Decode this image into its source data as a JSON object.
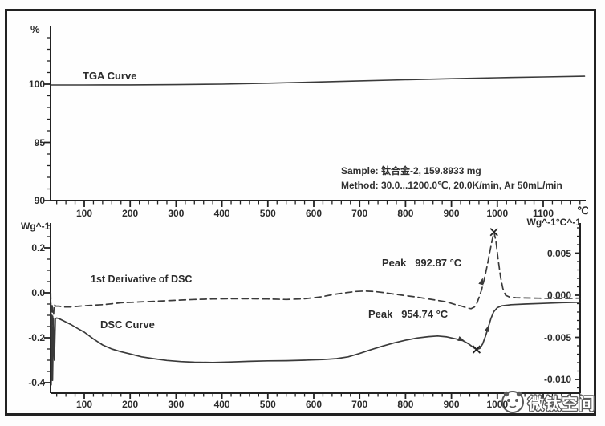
{
  "watermark": {
    "text": "微钛空间",
    "logo": "panda-logo-icon"
  },
  "shared_x_axis": {
    "unit": "℃",
    "tick_labels": [
      100,
      200,
      300,
      400,
      500,
      600,
      700,
      800,
      900,
      1000,
      1100
    ]
  },
  "bottom_x_axis": {
    "tick_labels": [
      100,
      200,
      300,
      400,
      500,
      600,
      700,
      800,
      900,
      1000
    ]
  },
  "chart_data": [
    {
      "type": "line",
      "title": "TGA Curve",
      "ylabel": "%",
      "x_unit": "℃",
      "xlim": [
        27,
        1190
      ],
      "ylim": [
        90,
        105
      ],
      "x_ticks": [
        100,
        200,
        300,
        400,
        500,
        600,
        700,
        800,
        900,
        1000,
        1100
      ],
      "y_ticks": [
        {
          "v": 100,
          "label": "100"
        },
        {
          "v": 95,
          "label": "95"
        },
        {
          "v": 90,
          "label": "90"
        }
      ],
      "grid": false,
      "series": [
        {
          "name": "TGA Curve",
          "style": "solid",
          "x": [
            27,
            100,
            200,
            300,
            400,
            500,
            600,
            700,
            800,
            900,
            1000,
            1100,
            1190
          ],
          "y": [
            99.93,
            99.93,
            99.94,
            99.96,
            100.0,
            100.08,
            100.18,
            100.28,
            100.38,
            100.47,
            100.55,
            100.62,
            100.68
          ]
        }
      ],
      "annotations": [
        "Sample: 钛合金-2, 159.8933 mg",
        "Method: 30.0...1200.0℃, 20.0K/min, Ar 50mL/min"
      ]
    },
    {
      "type": "line",
      "xlim": [
        27,
        1180
      ],
      "x_ticks": [
        100,
        200,
        300,
        400,
        500,
        600,
        700,
        800,
        900,
        1000,
        1100
      ],
      "left_axis": {
        "label": "Wg^-1",
        "lim": [
          -0.45,
          0.31
        ],
        "ticks": [
          {
            "v": 0.2,
            "label": "0.2"
          },
          {
            "v": 0.0,
            "label": "0.0"
          },
          {
            "v": -0.2,
            "label": "-0.2"
          },
          {
            "v": -0.4,
            "label": "-0.4"
          }
        ]
      },
      "right_axis": {
        "label": "Wg^-1°C^-1",
        "lim": [
          -0.0116,
          0.0086
        ],
        "ticks": [
          {
            "v": 0.005,
            "label": "0.005"
          },
          {
            "v": 0.0,
            "label": "0.000"
          },
          {
            "v": -0.005,
            "label": "-0.005"
          },
          {
            "v": -0.01,
            "label": "-0.010"
          }
        ]
      },
      "series": [
        {
          "name": "DSC Curve",
          "axis": "left",
          "style": "solid",
          "x": [
            27,
            28,
            29.5,
            31,
            33,
            35,
            37,
            40,
            45,
            55,
            70,
            85,
            100,
            120,
            140,
            160,
            180,
            200,
            225,
            250,
            280,
            310,
            340,
            380,
            420,
            460,
            500,
            540,
            580,
            620,
            650,
            675,
            700,
            725,
            750,
            775,
            800,
            825,
            850,
            870,
            890,
            910,
            925,
            938,
            947,
            954.74,
            962,
            968,
            974,
            980,
            986,
            992,
            1000,
            1010,
            1030,
            1060,
            1100,
            1140,
            1180
          ],
          "y": [
            -0.02,
            -0.41,
            -0.1,
            -0.39,
            -0.12,
            -0.3,
            -0.115,
            -0.112,
            -0.115,
            -0.125,
            -0.14,
            -0.158,
            -0.175,
            -0.205,
            -0.232,
            -0.25,
            -0.262,
            -0.272,
            -0.285,
            -0.293,
            -0.301,
            -0.306,
            -0.309,
            -0.31,
            -0.308,
            -0.305,
            -0.303,
            -0.302,
            -0.3,
            -0.297,
            -0.293,
            -0.285,
            -0.27,
            -0.253,
            -0.237,
            -0.223,
            -0.211,
            -0.201,
            -0.195,
            -0.192,
            -0.196,
            -0.205,
            -0.213,
            -0.228,
            -0.242,
            -0.252,
            -0.247,
            -0.228,
            -0.195,
            -0.155,
            -0.115,
            -0.085,
            -0.066,
            -0.058,
            -0.053,
            -0.05,
            -0.047,
            -0.044,
            -0.042
          ]
        },
        {
          "name": "1st Derivative of DSC",
          "axis": "right",
          "style": "dashed",
          "x": [
            27,
            28.5,
            30,
            32,
            34.5,
            38,
            45,
            55,
            70,
            90,
            115,
            145,
            180,
            220,
            260,
            300,
            340,
            380,
            420,
            460,
            500,
            540,
            580,
            615,
            645,
            670,
            692,
            712,
            732,
            755,
            778,
            800,
            822,
            845,
            868,
            890,
            908,
            922,
            934,
            943,
            950,
            956,
            960,
            966,
            972,
            978,
            984,
            989,
            992.87,
            997,
            1002,
            1007,
            1012,
            1018,
            1026,
            1040,
            1060,
            1090,
            1120,
            1150,
            1180
          ],
          "y": [
            0.0003,
            -0.0058,
            -0.001,
            -0.0036,
            -0.0011,
            -0.0013,
            -0.0013,
            -0.0014,
            -0.0014,
            -0.0013,
            -0.0012,
            -0.0011,
            -0.0009,
            -0.0008,
            -0.0007,
            -0.0006,
            -0.0005,
            -0.00045,
            -0.00042,
            -0.00042,
            -0.00045,
            -0.0005,
            -0.00042,
            -0.0002,
            0.0001,
            0.0003,
            0.00045,
            0.0005,
            0.00045,
            0.0003,
            0.0001,
            -5e-05,
            -0.0002,
            -0.0004,
            -0.0006,
            -0.0008,
            -0.0011,
            -0.0013,
            -0.0015,
            -0.0016,
            -0.0014,
            -0.0009,
            -0.0003,
            0.0007,
            0.002,
            0.0035,
            0.0052,
            0.0066,
            0.0075,
            0.0064,
            0.0042,
            0.0022,
            0.0008,
            0.0,
            -0.0002,
            -0.0003,
            -0.00032,
            -0.00035,
            -0.00038,
            -0.00038,
            -0.00035
          ]
        }
      ],
      "peaks": [
        {
          "label": "Peak   992.87 °C",
          "series": "1st Derivative of DSC",
          "temperature_c": 992.87
        },
        {
          "label": "Peak   954.74 °C",
          "series": "DSC Curve",
          "temperature_c": 954.74
        }
      ],
      "markers": {
        "x_markers": [
          {
            "series": "dashed",
            "t": 992.87,
            "v": 0.0075
          },
          {
            "series": "solid",
            "t": 954.74,
            "v": -0.252
          }
        ],
        "arrow_markers": [
          {
            "series": "solid",
            "t": 921,
            "v": -0.208
          },
          {
            "series": "solid",
            "t": 979,
            "v": -0.16
          },
          {
            "series": "dashed",
            "t": 966,
            "v": 0.0016
          }
        ]
      }
    }
  ]
}
